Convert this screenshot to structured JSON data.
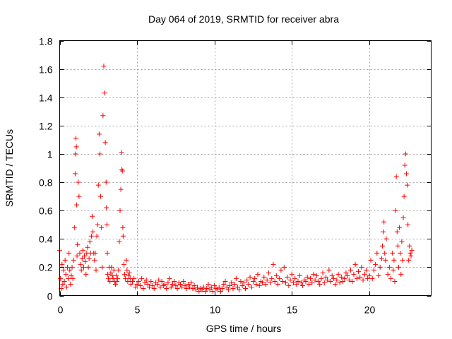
{
  "chart_data": {
    "type": "scatter",
    "title": "Day 064 of 2019, SRMTID for receiver abra",
    "xlabel": "GPS time / hours",
    "ylabel": "SRMTID / TECUs",
    "xlim": [
      0,
      24
    ],
    "ylim": [
      0,
      1.8
    ],
    "xticks": [
      0,
      5,
      10,
      15,
      20
    ],
    "yticks": [
      0,
      0.2,
      0.4,
      0.6,
      0.8,
      1,
      1.2,
      1.4,
      1.6,
      1.8
    ],
    "xtick_labels": [
      "0",
      "5",
      "10",
      "15",
      "20"
    ],
    "ytick_labels": [
      "0",
      "0.2",
      "0.4",
      "0.6",
      "0.8",
      "1",
      "1.2",
      "1.4",
      "1.6",
      "1.8"
    ],
    "grid": true,
    "marker": "+",
    "color": "#ff0000",
    "series": [
      {
        "name": "SRMTID",
        "x": [
          0.0,
          0.05,
          0.1,
          0.15,
          0.2,
          0.25,
          0.3,
          0.35,
          0.4,
          0.45,
          0.5,
          0.55,
          0.6,
          0.65,
          0.7,
          0.75,
          0.8,
          0.85,
          0.9,
          0.95,
          1.0,
          1.02,
          1.05,
          1.08,
          1.1,
          1.12,
          1.15,
          1.2,
          1.25,
          1.3,
          1.35,
          1.4,
          1.45,
          1.5,
          1.55,
          1.6,
          1.65,
          1.7,
          1.75,
          1.8,
          1.85,
          1.9,
          1.95,
          2.0,
          2.05,
          2.1,
          2.15,
          2.2,
          2.25,
          2.3,
          2.35,
          2.4,
          2.45,
          2.5,
          2.55,
          2.6,
          2.65,
          2.7,
          2.75,
          2.8,
          2.85,
          2.9,
          2.95,
          3.0,
          3.02,
          3.05,
          3.08,
          3.1,
          3.15,
          3.2,
          3.25,
          3.3,
          3.35,
          3.4,
          3.45,
          3.5,
          3.55,
          3.6,
          3.65,
          3.7,
          3.75,
          3.8,
          3.85,
          3.9,
          3.95,
          4.0,
          4.02,
          4.05,
          4.08,
          4.1,
          4.15,
          4.2,
          4.25,
          4.3,
          4.35,
          4.4,
          4.45,
          4.5,
          4.55,
          4.6,
          4.7,
          4.8,
          4.9,
          5.0,
          5.1,
          5.2,
          5.3,
          5.4,
          5.5,
          5.6,
          5.7,
          5.8,
          5.9,
          6.0,
          6.1,
          6.2,
          6.3,
          6.4,
          6.5,
          6.6,
          6.7,
          6.8,
          6.9,
          7.0,
          7.1,
          7.2,
          7.3,
          7.4,
          7.5,
          7.6,
          7.7,
          7.8,
          7.9,
          8.0,
          8.1,
          8.2,
          8.3,
          8.4,
          8.5,
          8.6,
          8.7,
          8.8,
          8.9,
          9.0,
          9.1,
          9.2,
          9.3,
          9.4,
          9.5,
          9.6,
          9.7,
          9.8,
          9.9,
          10.0,
          10.1,
          10.2,
          10.3,
          10.4,
          10.5,
          10.6,
          10.7,
          10.8,
          10.9,
          11.0,
          11.1,
          11.2,
          11.3,
          11.4,
          11.5,
          11.6,
          11.7,
          11.8,
          11.9,
          12.0,
          12.1,
          12.2,
          12.3,
          12.4,
          12.5,
          12.6,
          12.7,
          12.8,
          12.9,
          13.0,
          13.1,
          13.2,
          13.3,
          13.4,
          13.5,
          13.6,
          13.7,
          13.8,
          13.9,
          14.0,
          14.1,
          14.2,
          14.3,
          14.4,
          14.5,
          14.6,
          14.7,
          14.8,
          14.9,
          15.0,
          15.1,
          15.2,
          15.3,
          15.4,
          15.5,
          15.6,
          15.7,
          15.8,
          15.9,
          16.0,
          16.1,
          16.2,
          16.3,
          16.4,
          16.5,
          16.6,
          16.7,
          16.8,
          16.9,
          17.0,
          17.1,
          17.2,
          17.3,
          17.4,
          17.5,
          17.6,
          17.7,
          17.8,
          17.9,
          18.0,
          18.1,
          18.2,
          18.3,
          18.4,
          18.5,
          18.6,
          18.7,
          18.8,
          18.9,
          19.0,
          19.1,
          19.2,
          19.3,
          19.4,
          19.5,
          19.6,
          19.7,
          19.8,
          19.9,
          20.0,
          20.1,
          20.2,
          20.3,
          20.4,
          20.5,
          20.6,
          20.7,
          20.8,
          20.85,
          20.9,
          20.95,
          21.0,
          21.05,
          21.1,
          21.2,
          21.3,
          21.4,
          21.5,
          21.55,
          21.6,
          21.65,
          21.7,
          21.75,
          21.8,
          21.85,
          21.9,
          21.95,
          22.0,
          22.05,
          22.1,
          22.15,
          22.2,
          22.25,
          22.3,
          22.35,
          22.4,
          22.45,
          22.5,
          22.55,
          22.6,
          22.65,
          22.7,
          22.75
        ],
        "y": [
          0.32,
          0.12,
          0.05,
          0.22,
          0.08,
          0.18,
          0.1,
          0.25,
          0.15,
          0.06,
          0.2,
          0.12,
          0.3,
          0.18,
          0.08,
          0.14,
          0.2,
          0.12,
          0.25,
          0.48,
          0.86,
          1.0,
          1.11,
          1.05,
          0.64,
          0.28,
          0.36,
          0.8,
          0.7,
          0.3,
          0.22,
          0.18,
          0.26,
          0.32,
          0.2,
          0.28,
          0.24,
          0.15,
          0.3,
          0.34,
          0.2,
          0.26,
          0.38,
          0.3,
          0.42,
          0.56,
          0.45,
          0.3,
          0.25,
          0.3,
          0.18,
          0.42,
          0.5,
          0.78,
          1.14,
          1.0,
          0.7,
          0.48,
          0.2,
          1.27,
          1.62,
          1.43,
          1.08,
          0.8,
          0.62,
          0.5,
          0.3,
          0.15,
          0.12,
          0.2,
          0.1,
          0.16,
          0.2,
          0.14,
          0.12,
          0.18,
          0.1,
          0.08,
          0.14,
          0.1,
          0.12,
          0.18,
          0.38,
          0.6,
          0.75,
          1.01,
          0.89,
          0.88,
          0.48,
          0.42,
          0.22,
          0.15,
          0.12,
          0.25,
          0.18,
          0.1,
          0.14,
          0.16,
          0.12,
          0.08,
          0.1,
          0.12,
          0.06,
          0.08,
          0.1,
          0.07,
          0.12,
          0.05,
          0.09,
          0.11,
          0.08,
          0.06,
          0.1,
          0.07,
          0.05,
          0.09,
          0.08,
          0.11,
          0.06,
          0.1,
          0.07,
          0.08,
          0.05,
          0.09,
          0.12,
          0.06,
          0.08,
          0.1,
          0.07,
          0.05,
          0.09,
          0.08,
          0.06,
          0.1,
          0.07,
          0.05,
          0.08,
          0.06,
          0.09,
          0.05,
          0.07,
          0.04,
          0.06,
          0.03,
          0.05,
          0.04,
          0.06,
          0.03,
          0.05,
          0.08,
          0.04,
          0.06,
          0.03,
          0.07,
          0.05,
          0.04,
          0.06,
          0.03,
          0.05,
          0.08,
          0.1,
          0.06,
          0.04,
          0.07,
          0.09,
          0.05,
          0.08,
          0.12,
          0.06,
          0.04,
          0.1,
          0.07,
          0.09,
          0.05,
          0.11,
          0.08,
          0.13,
          0.06,
          0.1,
          0.12,
          0.08,
          0.15,
          0.07,
          0.1,
          0.09,
          0.13,
          0.08,
          0.11,
          0.16,
          0.09,
          0.12,
          0.22,
          0.1,
          0.14,
          0.08,
          0.12,
          0.18,
          0.1,
          0.2,
          0.09,
          0.13,
          0.07,
          0.11,
          0.15,
          0.09,
          0.12,
          0.08,
          0.1,
          0.14,
          0.09,
          0.07,
          0.11,
          0.1,
          0.13,
          0.08,
          0.12,
          0.09,
          0.15,
          0.11,
          0.14,
          0.1,
          0.08,
          0.12,
          0.16,
          0.09,
          0.13,
          0.11,
          0.18,
          0.1,
          0.14,
          0.12,
          0.08,
          0.11,
          0.15,
          0.09,
          0.13,
          0.1,
          0.12,
          0.16,
          0.14,
          0.11,
          0.18,
          0.1,
          0.15,
          0.22,
          0.12,
          0.17,
          0.13,
          0.2,
          0.11,
          0.15,
          0.18,
          0.12,
          0.14,
          0.25,
          0.12,
          0.18,
          0.22,
          0.3,
          0.14,
          0.2,
          0.26,
          0.35,
          0.45,
          0.52,
          0.3,
          0.25,
          0.4,
          0.15,
          0.2,
          0.12,
          0.3,
          0.18,
          0.25,
          0.1,
          0.6,
          0.84,
          0.45,
          0.35,
          0.2,
          0.48,
          0.3,
          0.15,
          0.38,
          0.25,
          0.55,
          0.7,
          0.92,
          1.0,
          0.86,
          0.78,
          0.5,
          0.25,
          0.35,
          0.3,
          0.28,
          0.32
        ]
      }
    ]
  }
}
